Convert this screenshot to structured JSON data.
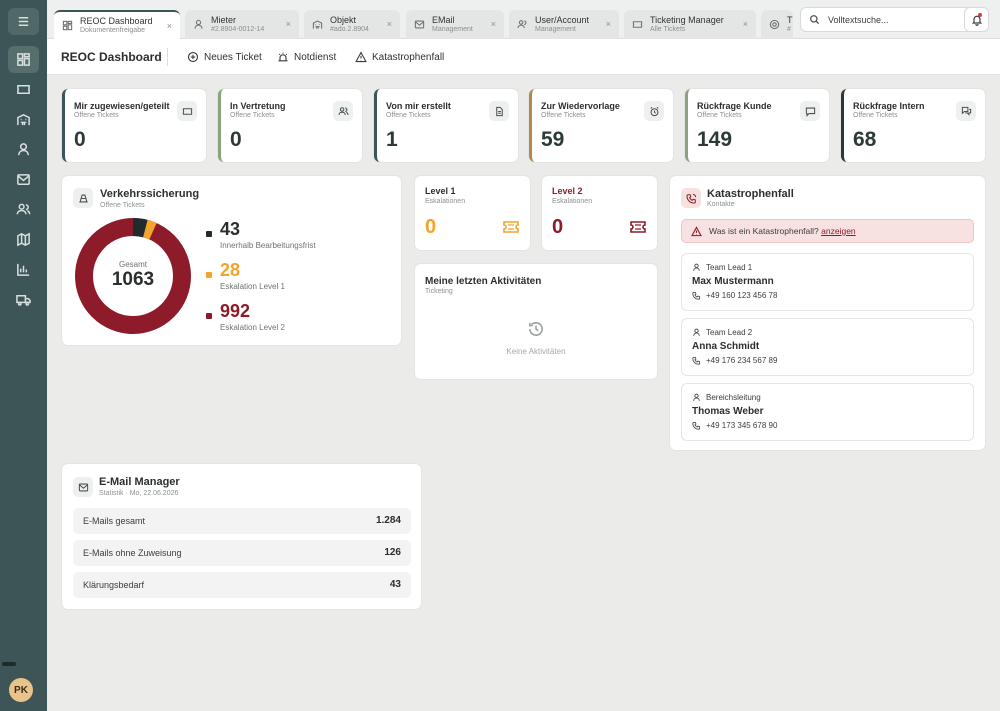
{
  "sidebar": {
    "items": [
      {
        "icon": "dashboard-icon",
        "active": true
      },
      {
        "icon": "ticket-icon"
      },
      {
        "icon": "building-icon"
      },
      {
        "icon": "user-icon"
      },
      {
        "icon": "mail-icon"
      },
      {
        "icon": "users-icon"
      },
      {
        "icon": "map-icon"
      },
      {
        "icon": "chart-icon"
      },
      {
        "icon": "truck-icon"
      }
    ],
    "avatar_initials": "PK"
  },
  "tabs": [
    {
      "title": "REOC Dashboard",
      "subtitle": "Dokumentenfreigabe",
      "close": "×"
    },
    {
      "title": "Mieter",
      "subtitle": "#2.8904-0012-14",
      "close": "×"
    },
    {
      "title": "Objekt",
      "subtitle": "#ado.2.8904",
      "close": "×"
    },
    {
      "title": "EMail",
      "subtitle": "Management",
      "close": "×"
    },
    {
      "title": "User/Account",
      "subtitle": "Management",
      "close": "×"
    },
    {
      "title": "Ticketing Manager",
      "subtitle": "Alle Tickets",
      "close": "×"
    },
    {
      "title": "T",
      "subtitle": "#"
    }
  ],
  "search": {
    "placeholder": "Volltextsuche..."
  },
  "toolbar": {
    "title": "REOC Dashboard",
    "actions": [
      "Neues Ticket",
      "Notdienst",
      "Katastrophenfall"
    ]
  },
  "stats": [
    {
      "title": "Mir zugewiesen/geteilt",
      "subtitle": "Offene Tickets",
      "value": "0",
      "icon": "ticket-icon",
      "accent": "#3d5556"
    },
    {
      "title": "In Vertretung",
      "subtitle": "Offene Tickets",
      "value": "0",
      "icon": "users-icon",
      "accent": "#8aa37e"
    },
    {
      "title": "Von mir erstellt",
      "subtitle": "Offene Tickets",
      "value": "1",
      "icon": "document-icon",
      "accent": "#3d5556"
    },
    {
      "title": "Zur Wiedervorlage",
      "subtitle": "Offene Tickets",
      "value": "59",
      "icon": "alarm-icon",
      "accent": "#b08a4a"
    },
    {
      "title": "Rückfrage Kunde",
      "subtitle": "Offene Tickets",
      "value": "149",
      "icon": "chat-icon",
      "accent": "#8aa37e"
    },
    {
      "title": "Rückfrage Intern",
      "subtitle": "Offene Tickets",
      "value": "68",
      "icon": "chats-icon",
      "accent": "#2b3a38"
    }
  ],
  "traffic": {
    "title": "Verkehrssicherung",
    "subtitle": "Offene Tickets",
    "center_label": "Gesamt",
    "center_value": "1063",
    "items": [
      {
        "value": "43",
        "label": "Innerhalb Bearbeitungsfrist",
        "color": "#1f2b2d"
      },
      {
        "value": "28",
        "label": "Eskalation Level 1",
        "color": "#f2a42c"
      },
      {
        "value": "992",
        "label": "Eskalation Level 2",
        "color": "#8e1b2a"
      }
    ]
  },
  "levels": [
    {
      "title": "Level 1",
      "subtitle": "Eskalationen",
      "value": "0",
      "color": "#f2a42c",
      "title_color": "#2b2f2d"
    },
    {
      "title": "Level 2",
      "subtitle": "Eskalationen",
      "value": "0",
      "color": "#8e1b2a",
      "title_color": "#8e1b2a"
    }
  ],
  "activities": {
    "title": "Meine letzten Aktivitäten",
    "subtitle": "Ticketing",
    "empty": "Keine Aktivitäten"
  },
  "disaster": {
    "title": "Katastrophenfall",
    "subtitle": "Kontakte",
    "alert_text": "Was ist ein Katastrophenfall?",
    "alert_link": "anzeigen",
    "contacts": [
      {
        "role": "Team Lead 1",
        "name": "Max Mustermann",
        "phone": "+49 160 123 456 78"
      },
      {
        "role": "Team Lead 2",
        "name": "Anna Schmidt",
        "phone": "+49 176 234 567 89"
      },
      {
        "role": "Bereichsleitung",
        "name": "Thomas Weber",
        "phone": "+49 173 345 678 90"
      }
    ]
  },
  "email": {
    "title": "E-Mail Manager",
    "subtitle": "Statistik · Mo, 22.06.2026",
    "rows": [
      {
        "label": "E-Mails gesamt",
        "value": "1.284"
      },
      {
        "label": "E-Mails ohne Zuweisung",
        "value": "126"
      },
      {
        "label": "Klärungsbedarf",
        "value": "43"
      }
    ]
  }
}
